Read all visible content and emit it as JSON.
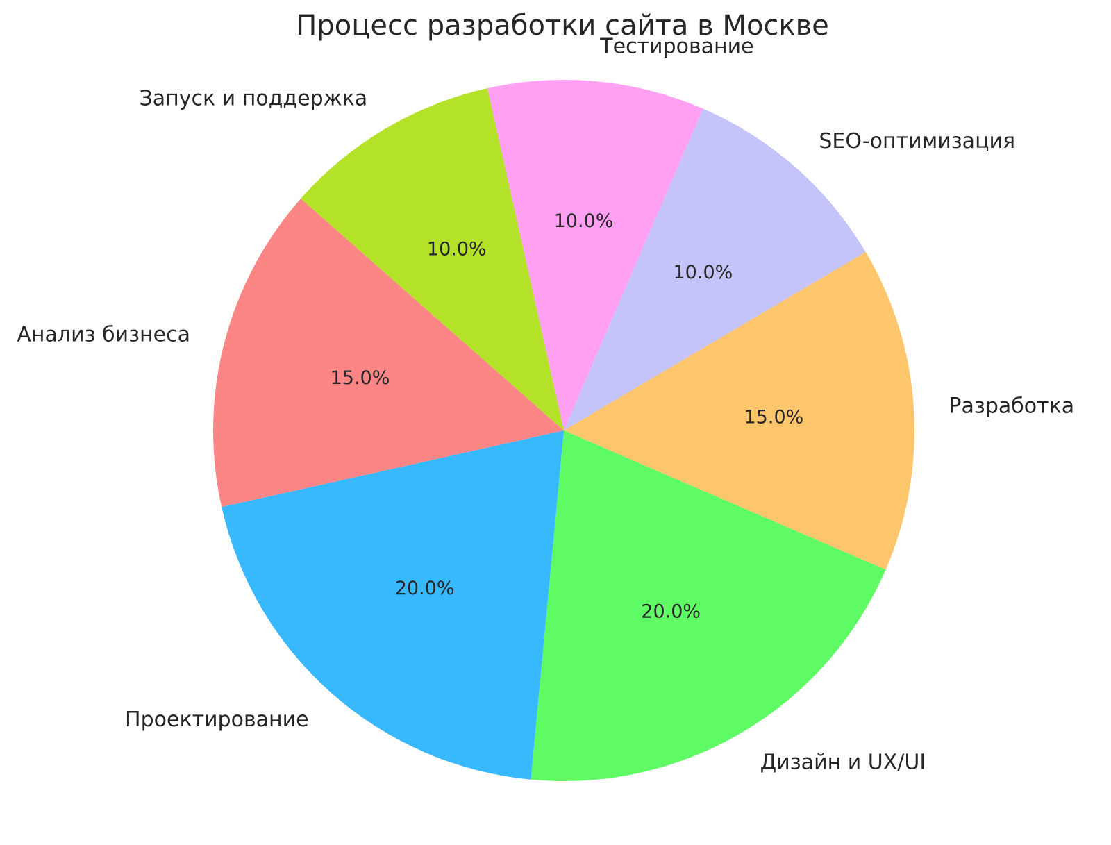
{
  "page": {
    "background": "#ffffff"
  },
  "chart_data": {
    "type": "pie",
    "title": "Процесс разработки сайта в Москве",
    "labels": [
      "Тестирование",
      "SEO-оптимизация",
      "Разработка",
      "Дизайн и UX/UI",
      "Проектирование",
      "Анализ бизнеса",
      "Запуск и поддержка"
    ],
    "values": [
      10.0,
      10.0,
      15.0,
      20.0,
      20.0,
      15.0,
      10.0
    ],
    "percent_labels": [
      "10.0%",
      "10.0%",
      "15.0%",
      "20.0%",
      "20.0%",
      "15.0%",
      "10.0%"
    ],
    "colors": [
      "#FFA0F3",
      "#C4C4FB",
      "#FDC56C",
      "#5FFB64",
      "#38B8FD",
      "#FC8585",
      "#B3E228"
    ],
    "start_angle_deg": 102.6,
    "direction": "clockwise",
    "legend": "none",
    "grid": "off",
    "label_distance": 1.1,
    "pct_distance": 0.6,
    "text_color": "#262626"
  }
}
